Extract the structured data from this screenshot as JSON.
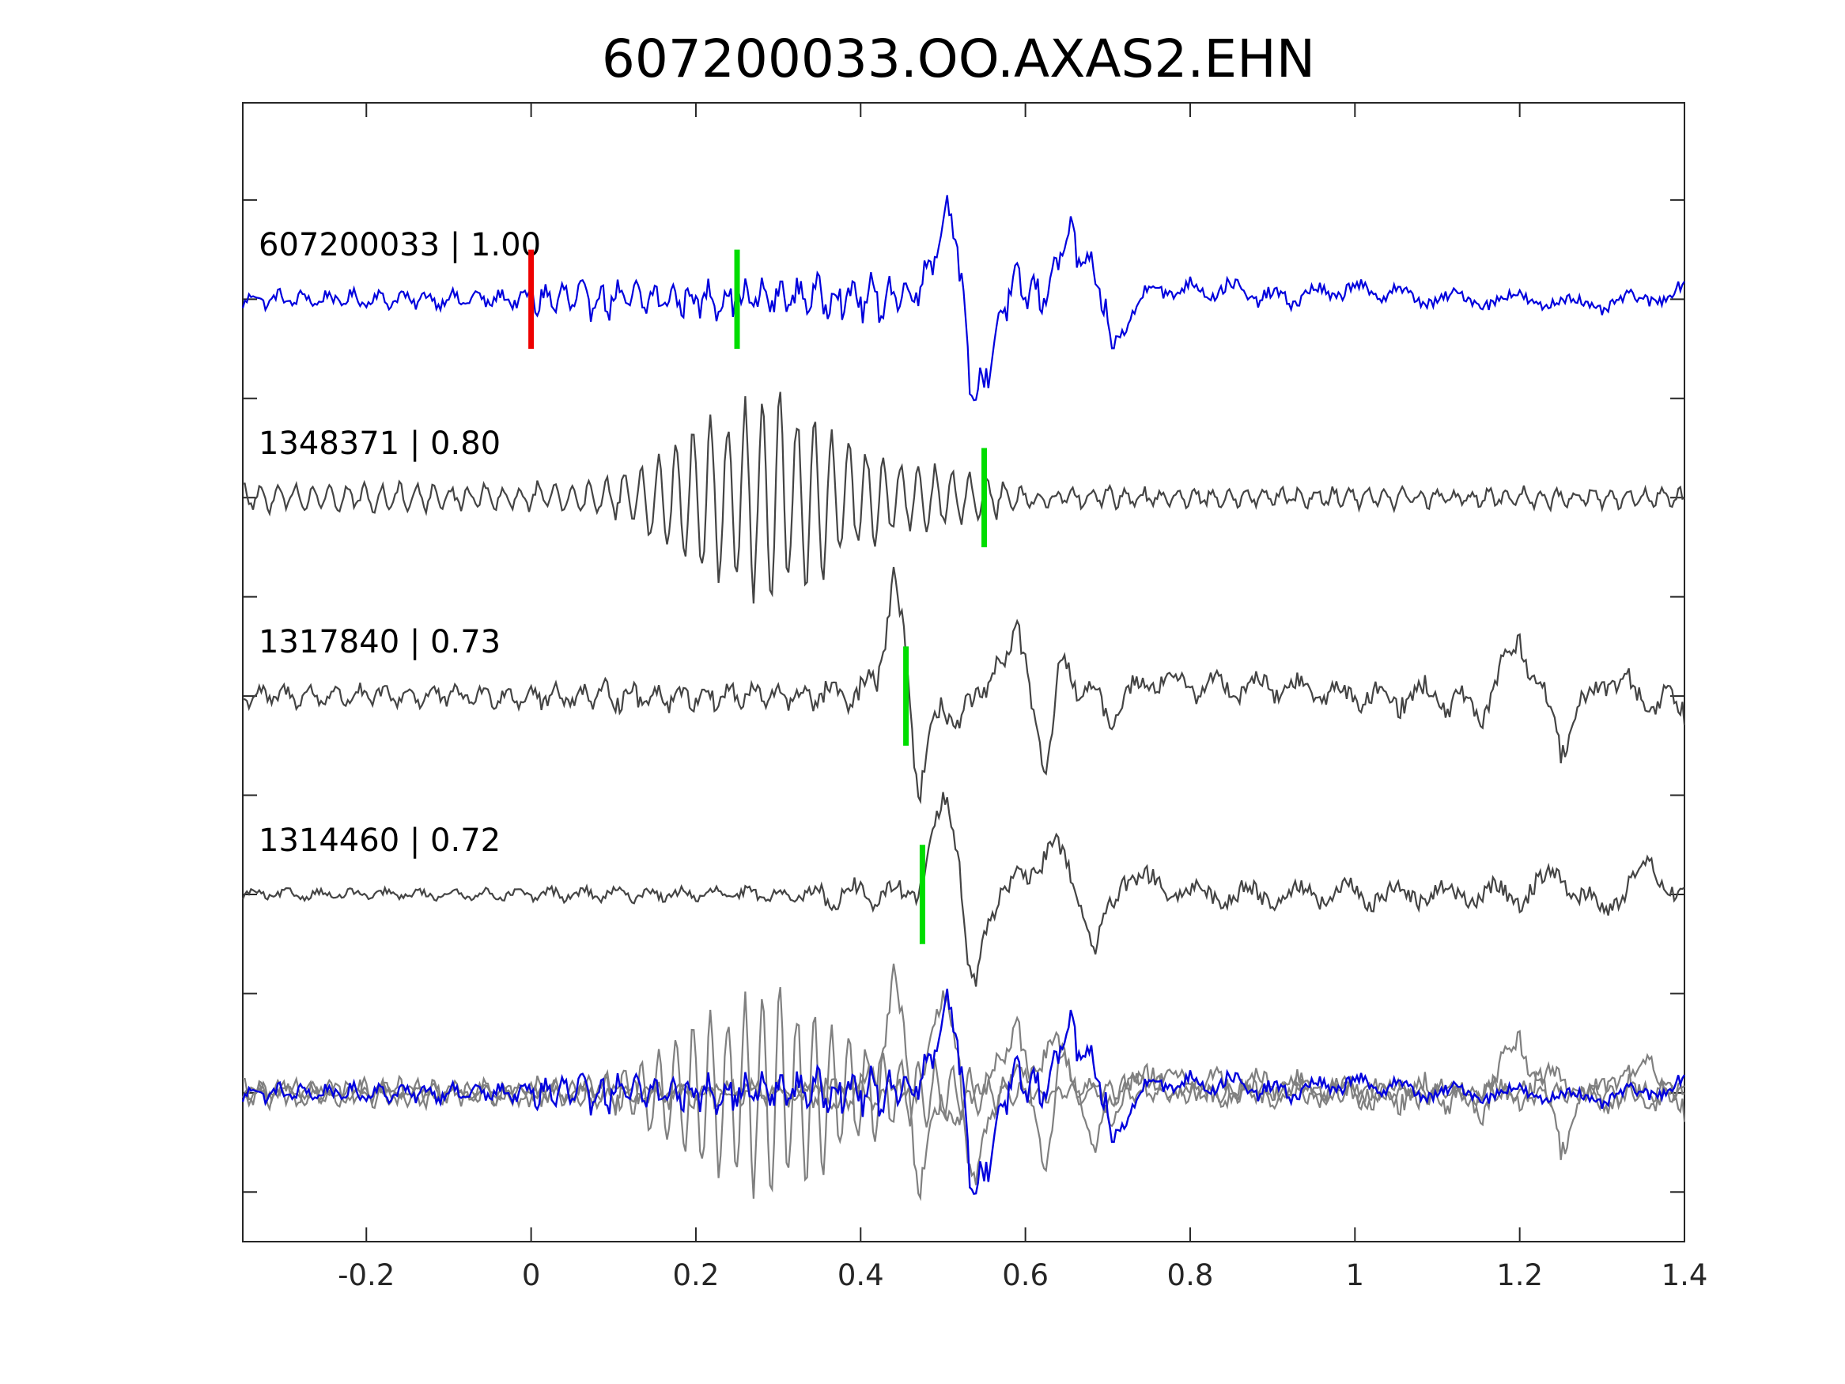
{
  "chart_data": {
    "type": "line",
    "title": "607200033.OO.AXAS2.EHN",
    "xlabel": "",
    "ylabel": "",
    "xlim": [
      -0.35,
      1.4
    ],
    "xticks": [
      -0.2,
      0,
      0.2,
      0.4,
      0.6,
      0.8,
      1,
      1.2,
      1.4
    ],
    "xtick_labels": [
      "-0.2",
      "0",
      "0.2",
      "0.4",
      "0.6",
      "0.8",
      "1",
      "1.2",
      "1.4"
    ],
    "ylim": [
      -0.75,
      4.99
    ],
    "yticks": [
      -0.5,
      0,
      0.5,
      1,
      1.5,
      2,
      2.5,
      3,
      3.5,
      4,
      4.5
    ],
    "ytick_labels_visible": false,
    "grid": false,
    "colors": {
      "master": "#0000dd",
      "trace": "#444444",
      "overlay": "#808080",
      "red_pick": "#ee0000",
      "green_pick": "#00dd00"
    },
    "series": [
      {
        "label": "607200033 | 1.00",
        "offset": 4,
        "kind": "master",
        "keypoints": [
          [
            -0.35,
            0
          ],
          [
            0.0,
            0
          ],
          [
            0.25,
            0
          ],
          [
            0.35,
            0.02
          ],
          [
            0.42,
            0
          ],
          [
            0.47,
            0.05
          ],
          [
            0.5,
            0.35
          ],
          [
            0.51,
            0.55
          ],
          [
            0.52,
            0.1
          ],
          [
            0.535,
            -0.45
          ],
          [
            0.545,
            -0.48
          ],
          [
            0.56,
            -0.25
          ],
          [
            0.58,
            0.05
          ],
          [
            0.6,
            0.05
          ],
          [
            0.62,
            0
          ],
          [
            0.64,
            0.2
          ],
          [
            0.65,
            0.33
          ],
          [
            0.67,
            0.2
          ],
          [
            0.69,
            0.05
          ],
          [
            0.705,
            -0.27
          ],
          [
            0.73,
            -0.05
          ],
          [
            0.75,
            0.05
          ],
          [
            0.8,
            0.05
          ],
          [
            0.85,
            0.05
          ],
          [
            0.9,
            0
          ],
          [
            1.0,
            0.05
          ],
          [
            1.1,
            0
          ],
          [
            1.2,
            0
          ],
          [
            1.3,
            -0.03
          ],
          [
            1.35,
            0
          ],
          [
            1.4,
            0.05
          ]
        ],
        "noise": [
          0.05,
          0.1,
          0.12,
          0.06,
          0.05
        ],
        "dominant_period": [
          0.03,
          0.022,
          0.022,
          0.05,
          0.07
        ]
      },
      {
        "label": "1348371 | 0.80",
        "offset": 3,
        "kind": "trace",
        "keypoints": [
          [
            -0.35,
            0
          ],
          [
            1.4,
            0
          ]
        ],
        "envelope": [
          [
            -0.35,
            0.06
          ],
          [
            0.0,
            0.06
          ],
          [
            0.1,
            0.08
          ],
          [
            0.15,
            0.2
          ],
          [
            0.2,
            0.35
          ],
          [
            0.25,
            0.45
          ],
          [
            0.3,
            0.52
          ],
          [
            0.35,
            0.4
          ],
          [
            0.4,
            0.25
          ],
          [
            0.45,
            0.18
          ],
          [
            0.5,
            0.15
          ],
          [
            0.55,
            0.1
          ],
          [
            0.6,
            0.04
          ],
          [
            1.4,
            0.04
          ]
        ],
        "dominant_period": 0.021,
        "pick_green": 0.55
      },
      {
        "label": "1317840 | 0.73",
        "offset": 2,
        "kind": "trace",
        "keypoints": [
          [
            -0.35,
            0
          ],
          [
            0.4,
            0
          ],
          [
            0.42,
            0.1
          ],
          [
            0.44,
            0.55
          ],
          [
            0.455,
            0.25
          ],
          [
            0.47,
            -0.5
          ],
          [
            0.48,
            -0.35
          ],
          [
            0.5,
            0.02
          ],
          [
            0.52,
            -0.2
          ],
          [
            0.54,
            0.05
          ],
          [
            0.56,
            0.02
          ],
          [
            0.59,
            0.4
          ],
          [
            0.61,
            -0.15
          ],
          [
            0.625,
            -0.37
          ],
          [
            0.64,
            0.1
          ],
          [
            0.66,
            0.1
          ],
          [
            0.7,
            -0.1
          ],
          [
            0.75,
            0.1
          ],
          [
            0.8,
            0.05
          ],
          [
            0.9,
            0.05
          ],
          [
            1.0,
            0
          ],
          [
            1.1,
            0
          ],
          [
            1.15,
            -0.1
          ],
          [
            1.2,
            0.3
          ],
          [
            1.25,
            -0.25
          ],
          [
            1.3,
            0.1
          ],
          [
            1.35,
            0
          ],
          [
            1.4,
            -0.05
          ]
        ],
        "noise": [
          0.06,
          0.08,
          0.1,
          0.08,
          0.1
        ],
        "dominant_period": [
          0.03,
          0.03,
          0.04,
          0.05,
          0.05
        ],
        "pick_green": 0.455
      },
      {
        "label": "1314460 | 0.72",
        "offset": 1,
        "kind": "trace",
        "keypoints": [
          [
            -0.35,
            0
          ],
          [
            0.45,
            0
          ],
          [
            0.47,
            0.03
          ],
          [
            0.49,
            0.3
          ],
          [
            0.505,
            0.52
          ],
          [
            0.52,
            0.2
          ],
          [
            0.53,
            -0.35
          ],
          [
            0.54,
            -0.52
          ],
          [
            0.55,
            -0.2
          ],
          [
            0.57,
            0.05
          ],
          [
            0.6,
            0.05
          ],
          [
            0.63,
            0.27
          ],
          [
            0.65,
            0.15
          ],
          [
            0.67,
            -0.05
          ],
          [
            0.685,
            -0.32
          ],
          [
            0.7,
            -0.1
          ],
          [
            0.72,
            0.1
          ],
          [
            0.75,
            0.05
          ],
          [
            0.8,
            0
          ],
          [
            0.9,
            0
          ],
          [
            1.0,
            0
          ],
          [
            1.1,
            0
          ],
          [
            1.2,
            0
          ],
          [
            1.25,
            0.1
          ],
          [
            1.3,
            -0.1
          ],
          [
            1.35,
            0.15
          ],
          [
            1.4,
            0
          ]
        ],
        "noise": [
          0.03,
          0.04,
          0.08,
          0.08,
          0.08
        ],
        "dominant_period": [
          0.04,
          0.04,
          0.05,
          0.06,
          0.06
        ],
        "pick_green": 0.475
      }
    ],
    "pick_red": 0.0,
    "pick_master_green": 0.25,
    "overlay_offset": 0
  }
}
